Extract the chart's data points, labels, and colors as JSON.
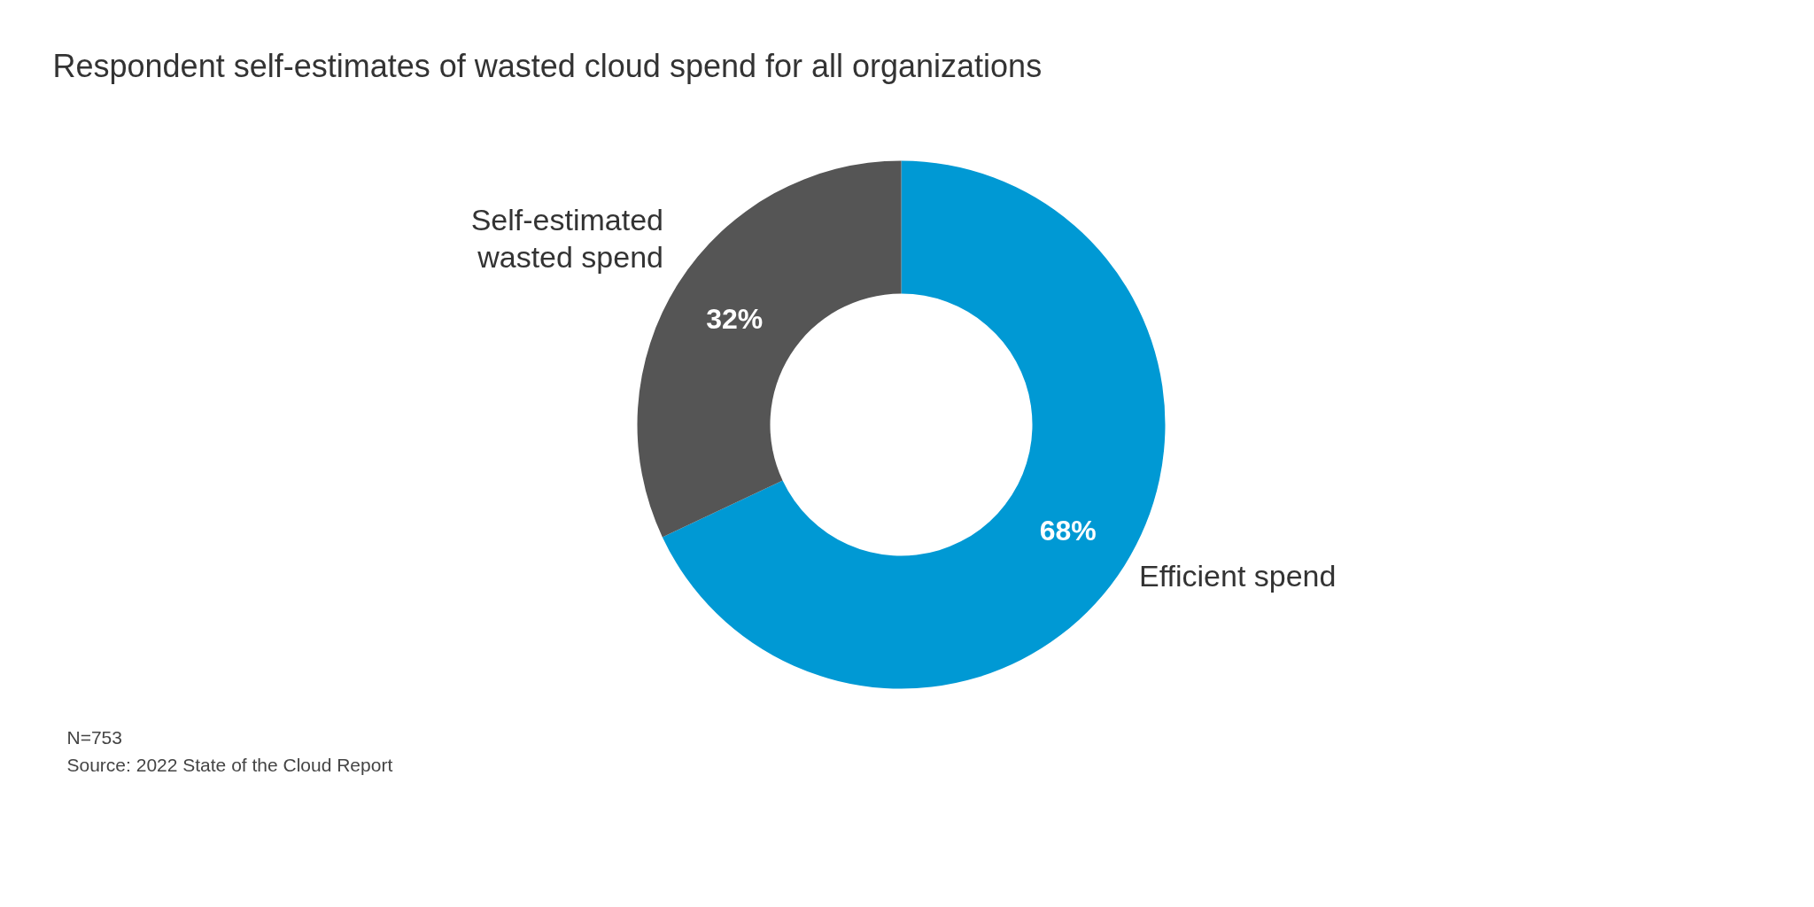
{
  "chart_data": {
    "type": "donut",
    "title": "Respondent self-estimates of wasted cloud spend for all organizations",
    "categories": [
      "Efficient spend",
      "Self-estimated wasted spend"
    ],
    "values": [
      68,
      32
    ],
    "colors": [
      "#0099d4",
      "#555555"
    ],
    "value_labels": [
      "68%",
      "32%"
    ],
    "annotations": [
      "N=753",
      "Source: 2022 State of the Cloud Report"
    ]
  }
}
